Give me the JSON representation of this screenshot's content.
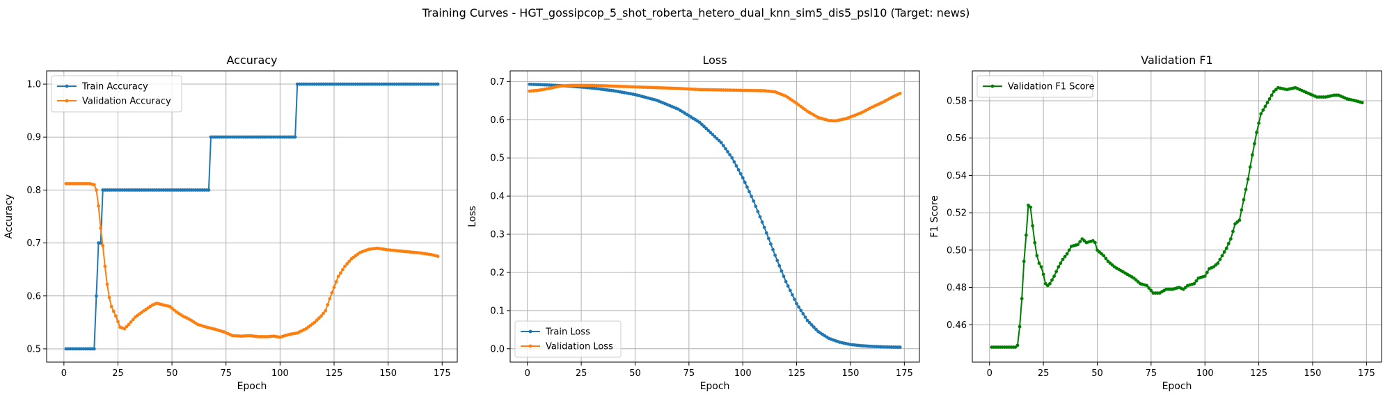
{
  "figure": {
    "suptitle": "Training Curves - HGT_gossipcop_5_shot_roberta_hetero_dual_knn_sim5_dis5_psl10 (Target: news)"
  },
  "colors": {
    "train": "#1f77b4",
    "validation": "#ff7f0e",
    "f1": "#008000",
    "grid": "#b0b0b0",
    "axes": "#000000"
  },
  "chart_data": [
    {
      "type": "line",
      "title": "Accuracy",
      "xlabel": "Epoch",
      "ylabel": "Accuracy",
      "xlim": [
        -8,
        182
      ],
      "ylim": [
        0.475,
        1.025
      ],
      "xticks": [
        0,
        25,
        50,
        75,
        100,
        125,
        150,
        175
      ],
      "yticks": [
        0.5,
        0.6,
        0.7,
        0.8,
        0.9,
        1.0
      ],
      "ytick_labels": [
        "0.5",
        "0.6",
        "0.7",
        "0.8",
        "0.9",
        "1.0"
      ],
      "grid": true,
      "legend_position": "upper left",
      "epochs": [
        1,
        173
      ],
      "series": [
        {
          "name": "Train Accuracy",
          "color_key": "train",
          "breakpoints": [
            [
              1,
              0.5
            ],
            [
              14,
              0.5
            ],
            [
              15,
              0.6
            ],
            [
              16,
              0.7
            ],
            [
              17,
              0.7
            ],
            [
              18,
              0.8
            ],
            [
              67,
              0.8
            ],
            [
              68,
              0.9
            ],
            [
              107,
              0.9
            ],
            [
              108,
              1.0
            ],
            [
              173,
              1.0
            ]
          ]
        },
        {
          "name": "Validation Accuracy",
          "color_key": "validation",
          "breakpoints": [
            [
              1,
              0.812
            ],
            [
              12,
              0.812
            ],
            [
              14,
              0.81
            ],
            [
              15,
              0.8
            ],
            [
              16,
              0.77
            ],
            [
              17,
              0.728
            ],
            [
              18,
              0.695
            ],
            [
              19,
              0.656
            ],
            [
              20,
              0.622
            ],
            [
              21,
              0.597
            ],
            [
              22,
              0.58
            ],
            [
              24,
              0.562
            ],
            [
              26,
              0.541
            ],
            [
              28,
              0.538
            ],
            [
              30,
              0.546
            ],
            [
              33,
              0.56
            ],
            [
              37,
              0.572
            ],
            [
              41,
              0.583
            ],
            [
              43,
              0.586
            ],
            [
              46,
              0.583
            ],
            [
              49,
              0.58
            ],
            [
              52,
              0.57
            ],
            [
              55,
              0.562
            ],
            [
              58,
              0.556
            ],
            [
              62,
              0.546
            ],
            [
              66,
              0.541
            ],
            [
              70,
              0.537
            ],
            [
              74,
              0.532
            ],
            [
              78,
              0.525
            ],
            [
              82,
              0.524
            ],
            [
              86,
              0.525
            ],
            [
              90,
              0.523
            ],
            [
              94,
              0.523
            ],
            [
              97,
              0.524
            ],
            [
              100,
              0.522
            ],
            [
              104,
              0.527
            ],
            [
              108,
              0.53
            ],
            [
              112,
              0.538
            ],
            [
              116,
              0.55
            ],
            [
              119,
              0.562
            ],
            [
              121,
              0.572
            ],
            [
              124,
              0.606
            ],
            [
              127,
              0.637
            ],
            [
              130,
              0.656
            ],
            [
              133,
              0.67
            ],
            [
              137,
              0.682
            ],
            [
              141,
              0.688
            ],
            [
              145,
              0.69
            ],
            [
              150,
              0.687
            ],
            [
              155,
              0.685
            ],
            [
              160,
              0.683
            ],
            [
              165,
              0.681
            ],
            [
              170,
              0.678
            ],
            [
              173,
              0.675
            ]
          ]
        }
      ]
    },
    {
      "type": "line",
      "title": "Loss",
      "xlabel": "Epoch",
      "ylabel": "Loss",
      "xlim": [
        -8,
        182
      ],
      "ylim": [
        -0.035,
        0.728
      ],
      "xticks": [
        0,
        25,
        50,
        75,
        100,
        125,
        150,
        175
      ],
      "yticks": [
        0.0,
        0.1,
        0.2,
        0.3,
        0.4,
        0.5,
        0.6,
        0.7
      ],
      "ytick_labels": [
        "0.0",
        "0.1",
        "0.2",
        "0.3",
        "0.4",
        "0.5",
        "0.6",
        "0.7"
      ],
      "grid": true,
      "legend_position": "lower left",
      "epochs": [
        1,
        173
      ],
      "series": [
        {
          "name": "Train Loss",
          "color_key": "train",
          "breakpoints": [
            [
              1,
              0.693
            ],
            [
              10,
              0.691
            ],
            [
              20,
              0.688
            ],
            [
              30,
              0.683
            ],
            [
              40,
              0.676
            ],
            [
              50,
              0.666
            ],
            [
              60,
              0.651
            ],
            [
              70,
              0.628
            ],
            [
              80,
              0.593
            ],
            [
              90,
              0.54
            ],
            [
              95,
              0.5
            ],
            [
              100,
              0.448
            ],
            [
              105,
              0.387
            ],
            [
              110,
              0.318
            ],
            [
              115,
              0.245
            ],
            [
              120,
              0.176
            ],
            [
              125,
              0.118
            ],
            [
              130,
              0.074
            ],
            [
              135,
              0.045
            ],
            [
              140,
              0.027
            ],
            [
              145,
              0.017
            ],
            [
              150,
              0.011
            ],
            [
              155,
              0.008
            ],
            [
              160,
              0.006
            ],
            [
              165,
              0.005
            ],
            [
              173,
              0.004
            ]
          ]
        },
        {
          "name": "Validation Loss",
          "color_key": "validation",
          "breakpoints": [
            [
              1,
              0.675
            ],
            [
              5,
              0.677
            ],
            [
              10,
              0.682
            ],
            [
              15,
              0.688
            ],
            [
              20,
              0.69
            ],
            [
              30,
              0.69
            ],
            [
              40,
              0.688
            ],
            [
              50,
              0.686
            ],
            [
              60,
              0.684
            ],
            [
              70,
              0.682
            ],
            [
              80,
              0.679
            ],
            [
              90,
              0.678
            ],
            [
              100,
              0.677
            ],
            [
              110,
              0.676
            ],
            [
              115,
              0.673
            ],
            [
              120,
              0.662
            ],
            [
              125,
              0.643
            ],
            [
              130,
              0.622
            ],
            [
              135,
              0.606
            ],
            [
              140,
              0.598
            ],
            [
              143,
              0.597
            ],
            [
              148,
              0.603
            ],
            [
              155,
              0.618
            ],
            [
              160,
              0.633
            ],
            [
              165,
              0.646
            ],
            [
              170,
              0.661
            ],
            [
              173,
              0.669
            ]
          ]
        }
      ]
    },
    {
      "type": "line",
      "title": "Validation F1",
      "xlabel": "Epoch",
      "ylabel": "F1 Score",
      "xlim": [
        -8,
        182
      ],
      "ylim": [
        0.44,
        0.596
      ],
      "xticks": [
        0,
        25,
        50,
        75,
        100,
        125,
        150,
        175
      ],
      "yticks": [
        0.46,
        0.48,
        0.5,
        0.52,
        0.54,
        0.56,
        0.58
      ],
      "ytick_labels": [
        "0.46",
        "0.48",
        "0.50",
        "0.52",
        "0.54",
        "0.56",
        "0.58"
      ],
      "grid": true,
      "legend_position": "upper left",
      "epochs": [
        1,
        173
      ],
      "series": [
        {
          "name": "Validation F1 Score",
          "color_key": "f1",
          "breakpoints": [
            [
              1,
              0.448
            ],
            [
              12,
              0.448
            ],
            [
              13,
              0.449
            ],
            [
              14,
              0.459
            ],
            [
              15,
              0.474
            ],
            [
              16,
              0.494
            ],
            [
              17,
              0.508
            ],
            [
              18,
              0.524
            ],
            [
              19,
              0.523
            ],
            [
              20,
              0.513
            ],
            [
              21,
              0.504
            ],
            [
              22,
              0.497
            ],
            [
              23,
              0.493
            ],
            [
              24,
              0.491
            ],
            [
              25,
              0.487
            ],
            [
              26,
              0.482
            ],
            [
              27,
              0.481
            ],
            [
              28,
              0.482
            ],
            [
              30,
              0.486
            ],
            [
              32,
              0.491
            ],
            [
              34,
              0.495
            ],
            [
              36,
              0.498
            ],
            [
              38,
              0.502
            ],
            [
              41,
              0.503
            ],
            [
              43,
              0.506
            ],
            [
              45,
              0.504
            ],
            [
              48,
              0.505
            ],
            [
              49,
              0.504
            ],
            [
              50,
              0.5
            ],
            [
              53,
              0.497
            ],
            [
              55,
              0.494
            ],
            [
              58,
              0.491
            ],
            [
              61,
              0.489
            ],
            [
              64,
              0.487
            ],
            [
              67,
              0.485
            ],
            [
              70,
              0.482
            ],
            [
              73,
              0.481
            ],
            [
              76,
              0.477
            ],
            [
              79,
              0.477
            ],
            [
              82,
              0.479
            ],
            [
              85,
              0.479
            ],
            [
              88,
              0.48
            ],
            [
              90,
              0.479
            ],
            [
              92,
              0.481
            ],
            [
              95,
              0.482
            ],
            [
              97,
              0.485
            ],
            [
              100,
              0.486
            ],
            [
              102,
              0.49
            ],
            [
              104,
              0.491
            ],
            [
              106,
              0.493
            ],
            [
              108,
              0.497
            ],
            [
              110,
              0.501
            ],
            [
              112,
              0.506
            ],
            [
              114,
              0.514
            ],
            [
              116,
              0.516
            ],
            [
              118,
              0.527
            ],
            [
              120,
              0.538
            ],
            [
              122,
              0.551
            ],
            [
              124,
              0.563
            ],
            [
              126,
              0.573
            ],
            [
              128,
              0.577
            ],
            [
              130,
              0.581
            ],
            [
              132,
              0.585
            ],
            [
              134,
              0.587
            ],
            [
              138,
              0.586
            ],
            [
              142,
              0.587
            ],
            [
              144,
              0.586
            ],
            [
              148,
              0.584
            ],
            [
              152,
              0.582
            ],
            [
              156,
              0.582
            ],
            [
              160,
              0.583
            ],
            [
              162,
              0.583
            ],
            [
              166,
              0.581
            ],
            [
              170,
              0.58
            ],
            [
              173,
              0.579
            ]
          ]
        }
      ]
    }
  ]
}
